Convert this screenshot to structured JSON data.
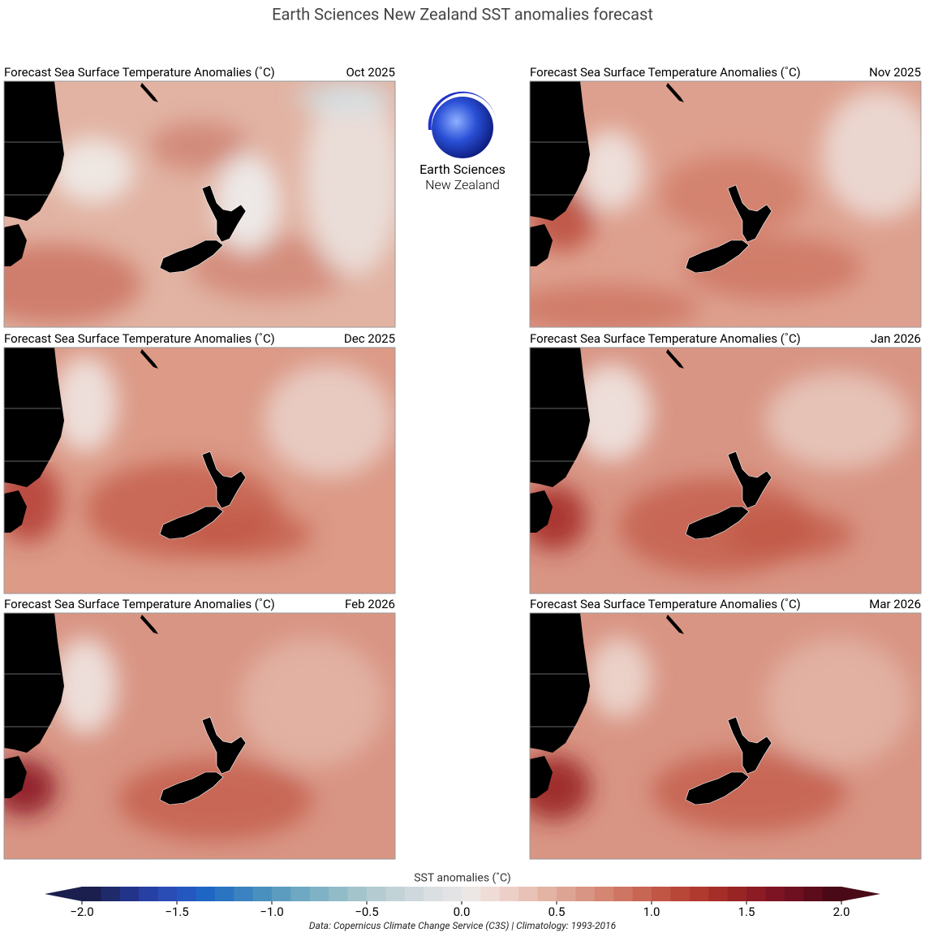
{
  "title": "Earth Sciences New Zealand SST anomalies forecast",
  "logo": {
    "line1": "Earth Sciences",
    "line2": "New Zealand"
  },
  "panels": [
    {
      "title": "Forecast Sea Surface Temperature Anomalies (˚C)",
      "date": "Oct 2025"
    },
    {
      "title": "Forecast Sea Surface Temperature Anomalies (˚C)",
      "date": "Nov 2025"
    },
    {
      "title": "Forecast Sea Surface Temperature Anomalies (˚C)",
      "date": "Dec 2025"
    },
    {
      "title": "Forecast Sea Surface Temperature Anomalies (˚C)",
      "date": "Jan 2026"
    },
    {
      "title": "Forecast Sea Surface Temperature Anomalies (˚C)",
      "date": "Feb 2026"
    },
    {
      "title": "Forecast Sea Surface Temperature Anomalies (˚C)",
      "date": "Mar 2026"
    }
  ],
  "colorbar": {
    "label": "SST anomalies (˚C)",
    "lim": [
      -2,
      2
    ],
    "ticks": [
      {
        "value": -2,
        "label": "−2.0"
      },
      {
        "value": -1.5,
        "label": "−1.5"
      },
      {
        "value": -1,
        "label": "−1.0"
      },
      {
        "value": -0.5,
        "label": "−0.5"
      },
      {
        "value": 0,
        "label": "0.0"
      },
      0.5,
      {
        "value": 1,
        "label": "1.0"
      },
      1.5,
      {
        "value": 2,
        "label": "2.0"
      }
    ],
    "colors": [
      "#1a1f4e",
      "#1f2a6b",
      "#22338a",
      "#2640a3",
      "#2a4db5",
      "#2458c0",
      "#1f66c4",
      "#2a74c2",
      "#3a82c0",
      "#4a90be",
      "#5c9cbf",
      "#6ea8c2",
      "#80b2c5",
      "#92bbc8",
      "#a4c4cc",
      "#b4ccd1",
      "#c2d3d7",
      "#cfd9dd",
      "#dadfe2",
      "#e3e3e5",
      "#ece6e4",
      "#efdcd6",
      "#ecd0c7",
      "#e8c2b6",
      "#e3b3a4",
      "#dea493",
      "#d99583",
      "#d48673",
      "#ce7663",
      "#c86654",
      "#c15645",
      "#b94738",
      "#b13a2e",
      "#a52f28",
      "#992424",
      "#8c1b24",
      "#7d1423",
      "#6e1020",
      "#5c0c1b",
      "#4a0916"
    ]
  },
  "source": "Data: Copernicus Climate Change Service (C3S) | Climatology: 1993-2016"
}
